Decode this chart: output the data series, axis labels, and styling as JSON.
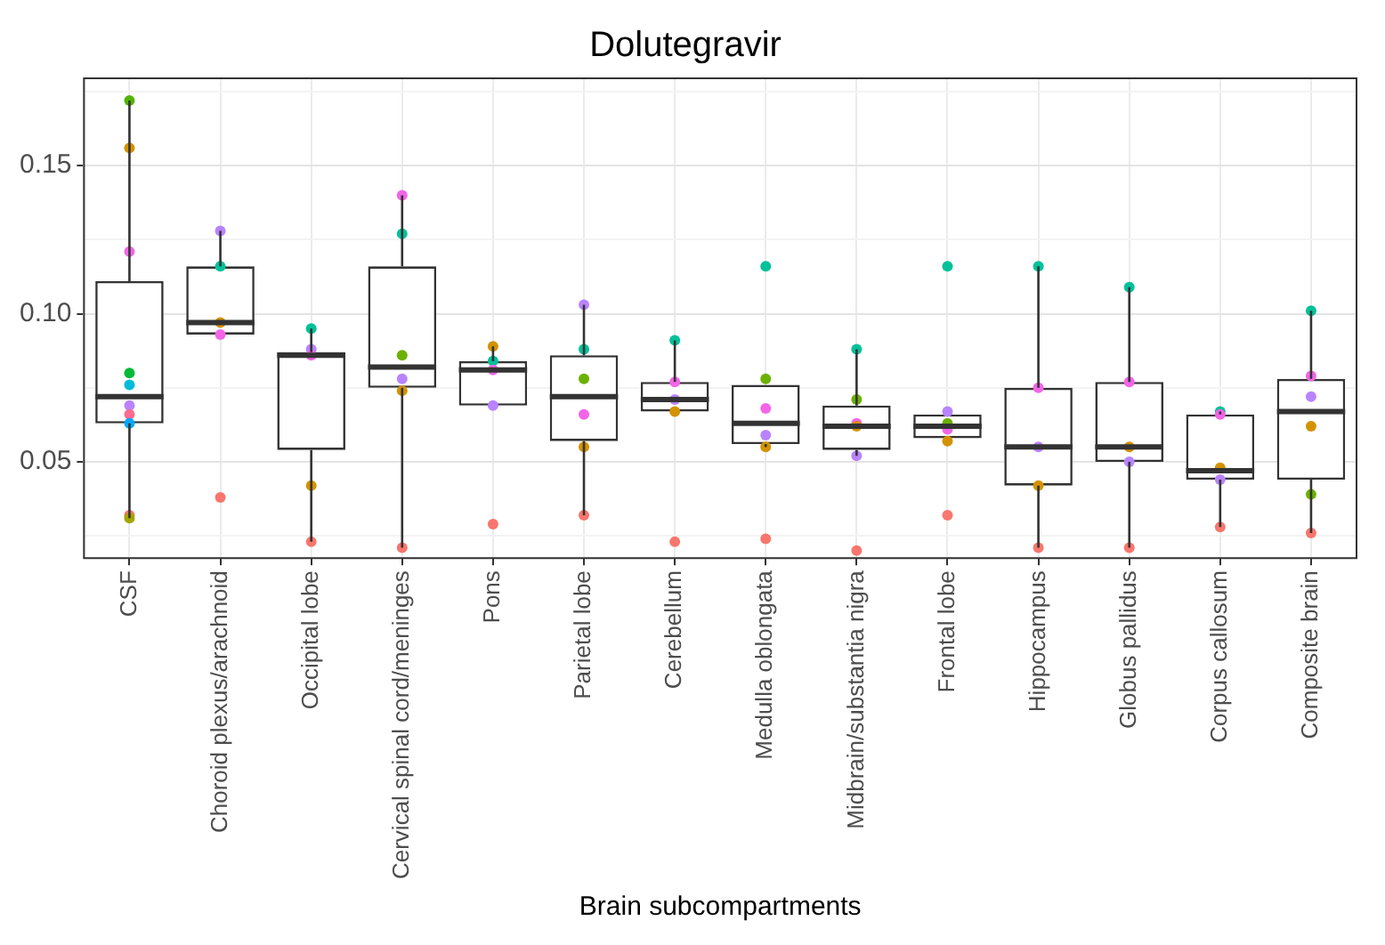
{
  "chart_data": {
    "type": "box",
    "title": "Dolutegravir",
    "xlabel": "Brain subcompartments",
    "categories": [
      "CSF",
      "Choroid plexus/arachnoid",
      "Occipital lobe",
      "Cervical spinal cord/meninges",
      "Pons",
      "Parietal lobe",
      "Cerebellum",
      "Medulla oblongata",
      "Midbrain/substantia nigra",
      "Frontal lobe",
      "Hippocampus",
      "Globus pallidus",
      "Corpus callosum",
      "Composite brain"
    ],
    "ylim": [
      0.0175,
      0.1795
    ],
    "yticks": [
      {
        "value": 0.025,
        "label": null
      },
      0.05,
      {
        "value": 0.075,
        "label": null
      },
      {
        "value": 0.1,
        "label": "0.10"
      },
      {
        "value": 0.125,
        "label": null
      },
      0.15,
      {
        "value": 0.175,
        "label": null
      }
    ],
    "grid": true,
    "legend": false,
    "series": [
      {
        "color": "#333333",
        "boxes": [
          {
            "low": 0.031,
            "q1": 0.063,
            "median": 0.072,
            "q3": 0.111,
            "high": 0.172
          },
          {
            "low": 0.093,
            "q1": 0.093,
            "median": 0.097,
            "q3": 0.116,
            "high": 0.128
          },
          {
            "low": 0.023,
            "q1": 0.054,
            "median": 0.086,
            "q3": 0.087,
            "high": 0.095
          },
          {
            "low": 0.021,
            "q1": 0.075,
            "median": 0.082,
            "q3": 0.116,
            "high": 0.14
          },
          {
            "low": 0.069,
            "q1": 0.069,
            "median": 0.081,
            "q3": 0.084,
            "high": 0.089
          },
          {
            "low": 0.032,
            "q1": 0.057,
            "median": 0.072,
            "q3": 0.086,
            "high": 0.103
          },
          {
            "low": 0.067,
            "q1": 0.067,
            "median": 0.071,
            "q3": 0.077,
            "high": 0.091
          },
          {
            "low": 0.055,
            "q1": 0.056,
            "median": 0.063,
            "q3": 0.076,
            "high": 0.076
          },
          {
            "low": 0.052,
            "q1": 0.054,
            "median": 0.062,
            "q3": 0.069,
            "high": 0.088
          },
          {
            "low": 0.058,
            "q1": 0.058,
            "median": 0.062,
            "q3": 0.066,
            "high": 0.066
          },
          {
            "low": 0.021,
            "q1": 0.042,
            "median": 0.055,
            "q3": 0.075,
            "high": 0.116
          },
          {
            "low": 0.021,
            "q1": 0.05,
            "median": 0.055,
            "q3": 0.077,
            "high": 0.109
          },
          {
            "low": 0.028,
            "q1": 0.044,
            "median": 0.047,
            "q3": 0.066,
            "high": 0.067
          },
          {
            "low": 0.026,
            "q1": 0.044,
            "median": 0.067,
            "q3": 0.078,
            "high": 0.101
          }
        ]
      },
      {
        "type": "scatter",
        "marker": "circle",
        "x": [
          "CSF",
          "CSF",
          "CSF",
          "CSF",
          "CSF",
          "CSF",
          "CSF",
          "CSF",
          "CSF",
          "CSF",
          "Choroid plexus/arachnoid",
          "Choroid plexus/arachnoid",
          "Choroid plexus/arachnoid",
          "Choroid plexus/arachnoid",
          "Choroid plexus/arachnoid",
          "Occipital lobe",
          "Occipital lobe",
          "Occipital lobe",
          "Occipital lobe",
          "Occipital lobe",
          "Cervical spinal cord/meninges",
          "Cervical spinal cord/meninges",
          "Cervical spinal cord/meninges",
          "Cervical spinal cord/meninges",
          "Cervical spinal cord/meninges",
          "Cervical spinal cord/meninges",
          "Pons",
          "Pons",
          "Pons",
          "Pons",
          "Pons",
          "Parietal lobe",
          "Parietal lobe",
          "Parietal lobe",
          "Parietal lobe",
          "Parietal lobe",
          "Parietal lobe",
          "Cerebellum",
          "Cerebellum",
          "Cerebellum",
          "Cerebellum",
          "Cerebellum",
          "Medulla oblongata",
          "Medulla oblongata",
          "Medulla oblongata",
          "Medulla oblongata",
          "Medulla oblongata",
          "Medulla oblongata",
          "Midbrain/substantia nigra",
          "Midbrain/substantia nigra",
          "Midbrain/substantia nigra",
          "Midbrain/substantia nigra",
          "Midbrain/substantia nigra",
          "Midbrain/substantia nigra",
          "Frontal lobe",
          "Frontal lobe",
          "Frontal lobe",
          "Frontal lobe",
          "Frontal lobe",
          "Frontal lobe",
          "Hippocampus",
          "Hippocampus",
          "Hippocampus",
          "Hippocampus",
          "Hippocampus",
          "Globus pallidus",
          "Globus pallidus",
          "Globus pallidus",
          "Globus pallidus",
          "Globus pallidus",
          "Corpus callosum",
          "Corpus callosum",
          "Corpus callosum",
          "Corpus callosum",
          "Corpus callosum",
          "Composite brain",
          "Composite brain",
          "Composite brain",
          "Composite brain",
          "Composite brain",
          "Composite brain"
        ],
        "values": [
          0.172,
          0.156,
          0.121,
          0.08,
          0.076,
          0.069,
          0.066,
          0.063,
          0.032,
          0.031,
          0.128,
          0.116,
          0.097,
          0.093,
          0.038,
          0.095,
          0.088,
          0.086,
          0.042,
          0.023,
          0.14,
          0.127,
          0.086,
          0.078,
          0.074,
          0.021,
          0.089,
          0.084,
          0.081,
          0.069,
          0.029,
          0.103,
          0.088,
          0.078,
          0.066,
          0.055,
          0.032,
          0.091,
          0.077,
          0.071,
          0.067,
          0.023,
          0.116,
          0.078,
          0.068,
          0.059,
          0.055,
          0.024,
          0.088,
          0.071,
          0.063,
          0.062,
          0.052,
          0.02,
          0.116,
          0.067,
          0.063,
          0.061,
          0.057,
          0.032,
          0.116,
          0.075,
          0.055,
          0.042,
          0.021,
          0.109,
          0.077,
          0.055,
          0.05,
          0.021,
          0.067,
          0.066,
          0.048,
          0.044,
          0.028,
          0.101,
          0.079,
          0.072,
          0.062,
          0.039,
          0.026
        ],
        "colors": [
          "#53b400",
          "#d39200",
          "#f265e7",
          "#00ba38",
          "#00bcd8",
          "#b983ff",
          "#ff6c91",
          "#00a9ff",
          "#f8766d",
          "#a3a500",
          "#b983ff",
          "#00c19a",
          "#d39200",
          "#f265e7",
          "#f8766d",
          "#00c19a",
          "#b983ff",
          "#f265e7",
          "#d39200",
          "#f8766d",
          "#f265e7",
          "#00c19a",
          "#6bb100",
          "#b983ff",
          "#d39200",
          "#f8766d",
          "#d39200",
          "#00c19a",
          "#f265e7",
          "#b983ff",
          "#f8766d",
          "#b983ff",
          "#00c19a",
          "#6bb100",
          "#f265e7",
          "#d39200",
          "#f8766d",
          "#00c19a",
          "#f265e7",
          "#b983ff",
          "#d39200",
          "#f8766d",
          "#00c19a",
          "#6bb100",
          "#f265e7",
          "#b983ff",
          "#d39200",
          "#f8766d",
          "#00c19a",
          "#6bb100",
          "#f265e7",
          "#d39200",
          "#b983ff",
          "#f8766d",
          "#00c19a",
          "#b983ff",
          "#6bb100",
          "#f265e7",
          "#d39200",
          "#f8766d",
          "#00c19a",
          "#f265e7",
          "#b983ff",
          "#d39200",
          "#f8766d",
          "#00c19a",
          "#f265e7",
          "#d39200",
          "#b983ff",
          "#f8766d",
          "#00c19a",
          "#f265e7",
          "#d39200",
          "#b983ff",
          "#f8766d",
          "#00c19a",
          "#f265e7",
          "#b983ff",
          "#d39200",
          "#6bb100",
          "#f8766d"
        ]
      }
    ]
  }
}
